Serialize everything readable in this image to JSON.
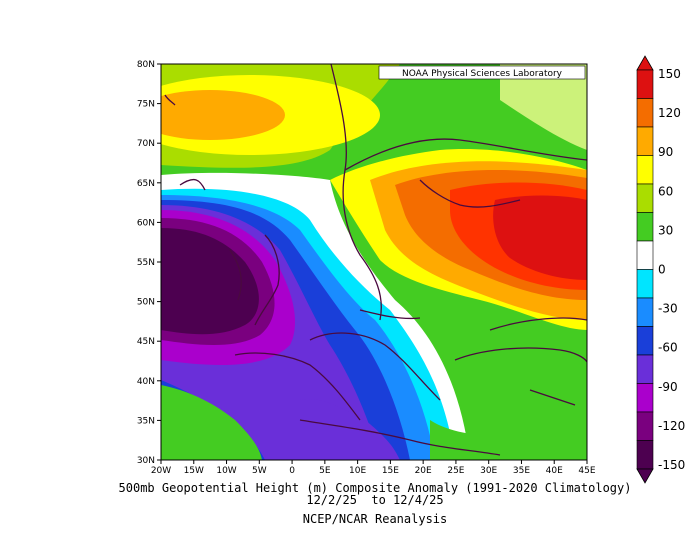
{
  "credit": "NOAA Physical Sciences Laboratory",
  "caption": {
    "line1": "500mb Geopotential Height (m) Composite Anomaly (1991-2020 Climatology)",
    "line2": "12/2/25  to 12/4/25",
    "line3": "NCEP/NCAR Reanalysis"
  },
  "lat_ticks": [
    "80N",
    "75N",
    "70N",
    "65N",
    "60N",
    "55N",
    "50N",
    "45N",
    "40N",
    "35N",
    "30N"
  ],
  "lon_ticks": [
    "20W",
    "15W",
    "10W",
    "5W",
    "0",
    "5E",
    "10E",
    "15E",
    "20E",
    "25E",
    "30E",
    "35E",
    "40E",
    "45E"
  ],
  "colorbar": {
    "labels": [
      "150",
      "120",
      "90",
      "60",
      "30",
      "0",
      "-30",
      "-60",
      "-90",
      "-120",
      "-150"
    ],
    "colors": [
      "#dd1111",
      "#f46d00",
      "#ffaa00",
      "#ffff00",
      "#aadd00",
      "#44cc22",
      "#ffffff",
      "#00e5ff",
      "#1a8cff",
      "#1a3fd9",
      "#6a2fd9",
      "#aa00cc",
      "#7a007f",
      "#4d0050"
    ]
  },
  "anomaly_centers": [
    {
      "label": "negative-center",
      "value": -150,
      "lon": -19,
      "lat": 51
    },
    {
      "label": "positive-center",
      "value": 135,
      "lon": 43,
      "lat": 57
    },
    {
      "label": "positive-north-atlantic",
      "value": 90,
      "lon": -17,
      "lat": 74
    }
  ]
}
